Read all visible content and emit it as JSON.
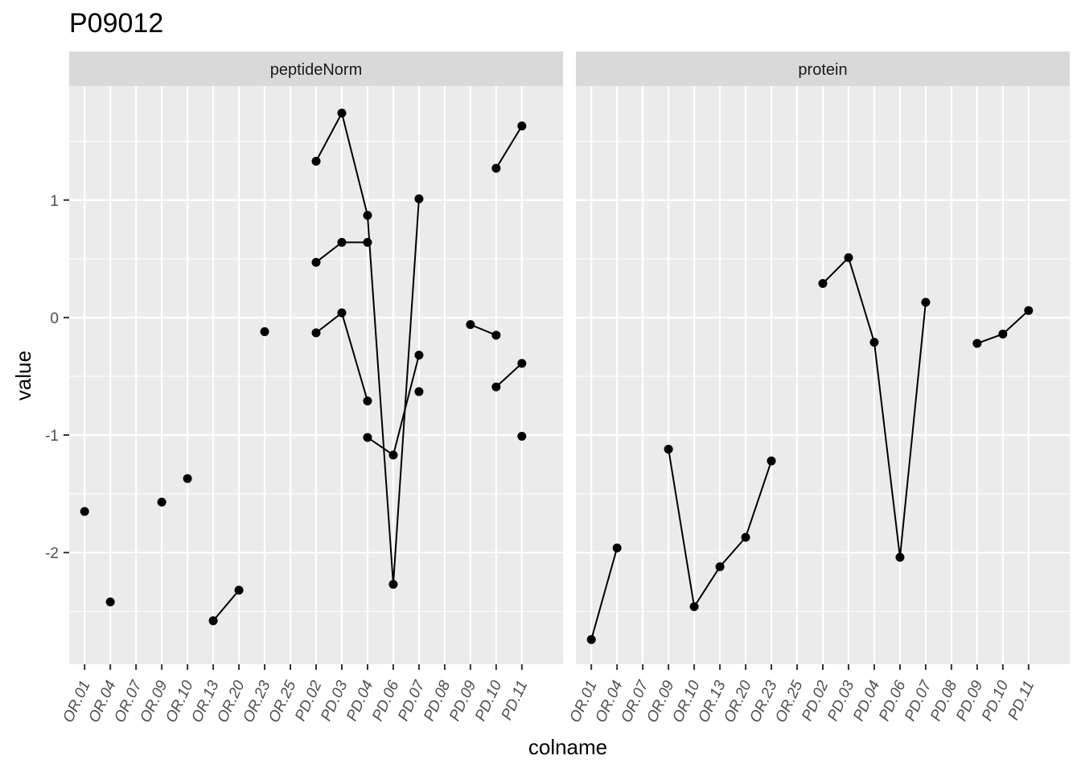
{
  "chart_data": {
    "type": "line",
    "title": "P09012",
    "xlabel": "colname",
    "ylabel": "value",
    "categories": [
      "OR.01",
      "OR.04",
      "OR.07",
      "OR.09",
      "OR.10",
      "OR.13",
      "OR.20",
      "OR.23",
      "OR.25",
      "PD.02",
      "PD.03",
      "PD.04",
      "PD.06",
      "PD.07",
      "PD.08",
      "PD.09",
      "PD.10",
      "PD.11"
    ],
    "y_ticks": [
      -2,
      -1,
      0,
      1
    ],
    "ylim": [
      -2.95,
      1.97
    ],
    "grid": true,
    "facets": [
      {
        "label": "peptideNorm",
        "series": [
          {
            "points": [
              [
                "OR.01",
                -1.65
              ]
            ]
          },
          {
            "points": [
              [
                "OR.04",
                -2.42
              ]
            ]
          },
          {
            "points": [
              [
                "OR.09",
                -1.57
              ]
            ]
          },
          {
            "points": [
              [
                "OR.10",
                -1.37
              ]
            ]
          },
          {
            "points": [
              [
                "OR.13",
                -2.58
              ],
              [
                "OR.20",
                -2.32
              ]
            ]
          },
          {
            "points": [
              [
                "OR.23",
                -0.12
              ]
            ]
          },
          {
            "points": [
              [
                "PD.02",
                1.33
              ],
              [
                "PD.03",
                1.74
              ],
              [
                "PD.04",
                0.87
              ],
              [
                "PD.06",
                -2.27
              ],
              [
                "PD.07",
                1.01
              ]
            ]
          },
          {
            "points": [
              [
                "PD.02",
                0.47
              ],
              [
                "PD.03",
                0.64
              ],
              [
                "PD.04",
                0.64
              ]
            ]
          },
          {
            "points": [
              [
                "PD.02",
                -0.13
              ],
              [
                "PD.03",
                0.04
              ],
              [
                "PD.04",
                -0.71
              ]
            ]
          },
          {
            "points": [
              [
                "PD.04",
                -1.02
              ],
              [
                "PD.06",
                -1.17
              ],
              [
                "PD.07",
                -0.32
              ]
            ]
          },
          {
            "points": [
              [
                "PD.07",
                -0.63
              ]
            ]
          },
          {
            "points": [
              [
                "PD.09",
                -0.06
              ],
              [
                "PD.10",
                -0.15
              ]
            ]
          },
          {
            "points": [
              [
                "PD.10",
                1.27
              ],
              [
                "PD.11",
                1.63
              ]
            ]
          },
          {
            "points": [
              [
                "PD.10",
                -0.59
              ],
              [
                "PD.11",
                -0.39
              ]
            ]
          },
          {
            "points": [
              [
                "PD.11",
                -1.01
              ]
            ]
          }
        ]
      },
      {
        "label": "protein",
        "series": [
          {
            "points": [
              [
                "OR.01",
                -2.74
              ],
              [
                "OR.04",
                -1.96
              ]
            ]
          },
          {
            "points": [
              [
                "OR.09",
                -1.12
              ],
              [
                "OR.10",
                -2.46
              ],
              [
                "OR.13",
                -2.12
              ],
              [
                "OR.20",
                -1.87
              ],
              [
                "OR.23",
                -1.22
              ]
            ]
          },
          {
            "points": [
              [
                "PD.02",
                0.29
              ],
              [
                "PD.03",
                0.51
              ],
              [
                "PD.04",
                -0.21
              ],
              [
                "PD.06",
                -2.04
              ],
              [
                "PD.07",
                0.13
              ]
            ]
          },
          {
            "points": [
              [
                "PD.09",
                -0.22
              ],
              [
                "PD.10",
                -0.14
              ],
              [
                "PD.11",
                0.06
              ]
            ]
          }
        ]
      }
    ]
  }
}
